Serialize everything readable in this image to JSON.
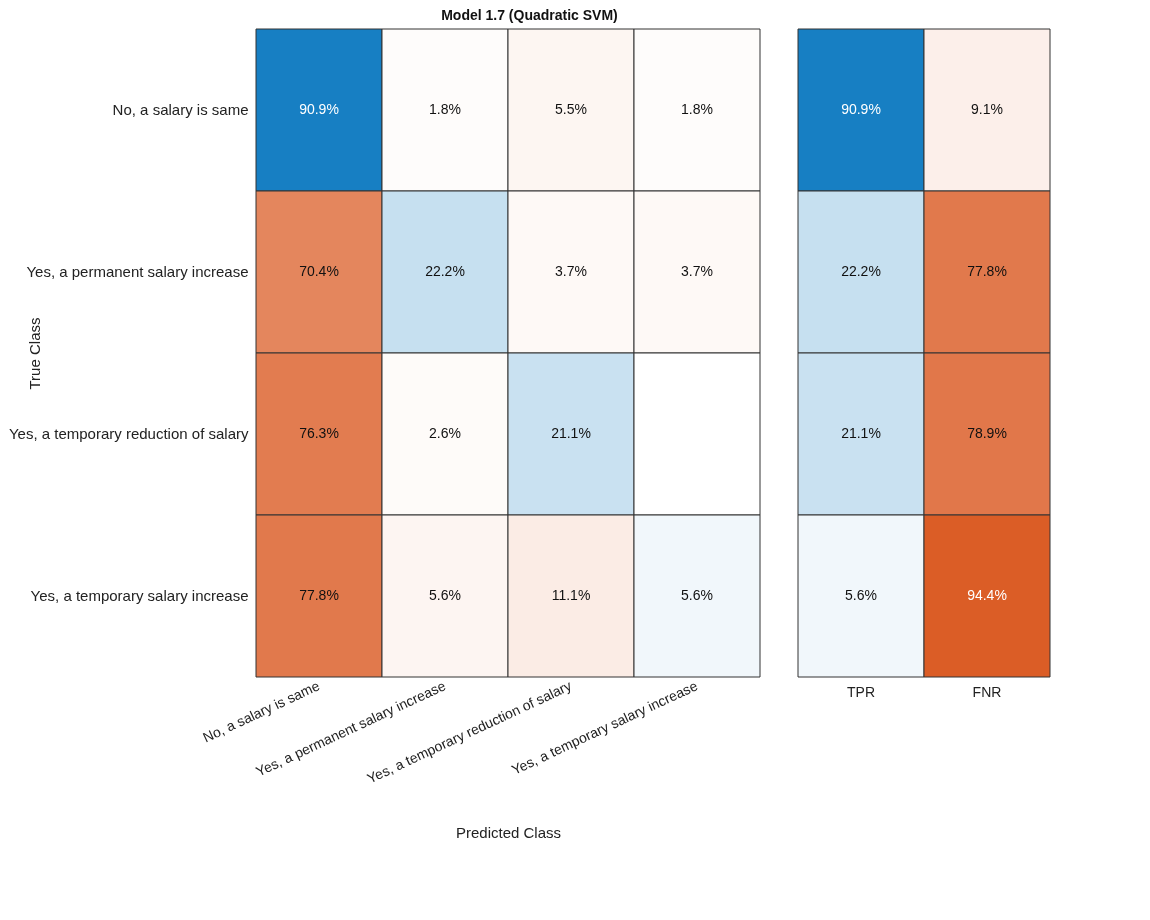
{
  "chart_data": [
    {
      "type": "heatmap",
      "title": "Model 1.7 (Quadratic SVM)",
      "xlabel": "Predicted Class",
      "ylabel": "True Class",
      "categories": [
        "No, a salary is same",
        "Yes, a permanent salary increase",
        "Yes, a temporary reduction of salary",
        "Yes, a temporary salary increase"
      ],
      "y_categories": [
        "No, a salary is same",
        "Yes, a permanent salary increase",
        "Yes, a temporary reduction of salary",
        "Yes, a temporary salary increase"
      ],
      "cells": [
        [
          90.9,
          1.8,
          5.5,
          1.8
        ],
        [
          70.4,
          22.2,
          3.7,
          3.7
        ],
        [
          76.3,
          2.6,
          21.1,
          null
        ],
        [
          77.8,
          5.6,
          11.1,
          5.6
        ]
      ],
      "cell_labels": [
        [
          "90.9%",
          "1.8%",
          "5.5%",
          "1.8%"
        ],
        [
          "70.4%",
          "22.2%",
          "3.7%",
          "3.7%"
        ],
        [
          "76.3%",
          "2.6%",
          "21.1%",
          null
        ],
        [
          "77.8%",
          "5.6%",
          "11.1%",
          "5.6%"
        ]
      ]
    },
    {
      "type": "heatmap",
      "tick_labels": "x",
      "categories": [
        "TPR",
        "FNR"
      ],
      "y_categories": [
        "No, a salary is same",
        "Yes, a permanent salary increase",
        "Yes, a temporary reduction of salary",
        "Yes, a temporary salary increase"
      ],
      "cells": [
        [
          90.9,
          9.1
        ],
        [
          22.2,
          77.8
        ],
        [
          21.1,
          78.9
        ],
        [
          5.6,
          94.4
        ]
      ],
      "cell_labels": [
        [
          "90.9%",
          "9.1%"
        ],
        [
          "22.2%",
          "77.8%"
        ],
        [
          "21.1%",
          "78.9%"
        ],
        [
          "5.6%",
          "94.4%"
        ]
      ]
    }
  ]
}
